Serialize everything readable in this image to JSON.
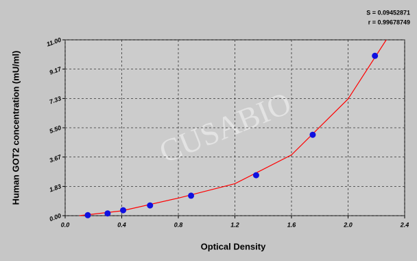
{
  "chart_data": {
    "type": "scatter",
    "xlabel": "Optical Density",
    "ylabel": "Human GOT2 concentration (mU/ml)",
    "annotations": [
      "S = 0.09452871",
      "r = 0.99678749"
    ],
    "watermark": "CUSABIO",
    "xlim": [
      0,
      2.4
    ],
    "ylim": [
      0,
      11
    ],
    "xticks": [
      {
        "value": 0,
        "label": "0.0"
      },
      0.4,
      0.8,
      1.2,
      1.6,
      {
        "value": 2,
        "label": "2.0"
      },
      2.4
    ],
    "yticks": [
      {
        "value": 0,
        "label": "0.00"
      },
      1.83,
      3.67,
      {
        "value": 5.5,
        "label": "5.50"
      },
      7.33,
      9.17,
      {
        "value": 11,
        "label": "11.00"
      }
    ],
    "grid": true,
    "series": [
      {
        "type": "scatter",
        "color": "#1010e0",
        "x": [
          0.16,
          0.3,
          0.41,
          0.6,
          0.89,
          1.35,
          1.75,
          2.19
        ],
        "values": [
          0.03,
          0.14,
          0.34,
          0.64,
          1.25,
          2.53,
          5.06,
          10.0
        ]
      },
      {
        "type": "line",
        "color": "#ff0000",
        "x": [
          0.1,
          0.4,
          0.8,
          1.2,
          1.6,
          2.0,
          2.27
        ],
        "values": [
          0.0,
          0.3,
          1.1,
          2.0,
          3.8,
          7.3,
          11.0
        ]
      }
    ]
  }
}
